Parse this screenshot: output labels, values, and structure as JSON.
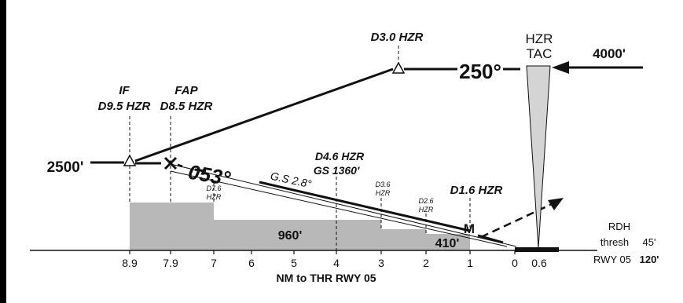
{
  "left_edge_color": "#000000",
  "colors": {
    "terrain": "#b8b8b8",
    "line": "#111111",
    "background": "#ffffff"
  },
  "fixes": {
    "if_label": "IF",
    "if_dist": "D9.5 HZR",
    "fap_label": "FAP",
    "fap_dist": "D8.5 HZR",
    "d30": "D3.0 HZR",
    "d46": "D4.6 HZR",
    "gs_alt": "GS 1360'",
    "d16": "D1.6 HZR",
    "d76": "D7.6",
    "d76_sub": "HZR",
    "d36": "D3.6",
    "d36_sub": "HZR",
    "d26": "D2.6",
    "d26_sub": "HZR",
    "map": "M"
  },
  "altitudes": {
    "left": "2500'",
    "right": "4000'",
    "terrain_960": "960'",
    "terrain_410": "410'"
  },
  "courses": {
    "outbound": "250°",
    "final": "053°",
    "glideslope": "G.S 2.8°"
  },
  "navaid": {
    "name": "HZR",
    "type": "TAC"
  },
  "runway": {
    "rdh": "RDH",
    "thresh_label": "thresh",
    "thresh_value": "45'",
    "rwy_label": "RWY 05",
    "rwy_value": "120'"
  },
  "axis": {
    "title": "NM to THR RWY 05",
    "ticks": [
      "8.9",
      "7.9",
      "7",
      "6",
      "5",
      "4",
      "3",
      "2",
      "1",
      "0",
      "0.6"
    ]
  }
}
